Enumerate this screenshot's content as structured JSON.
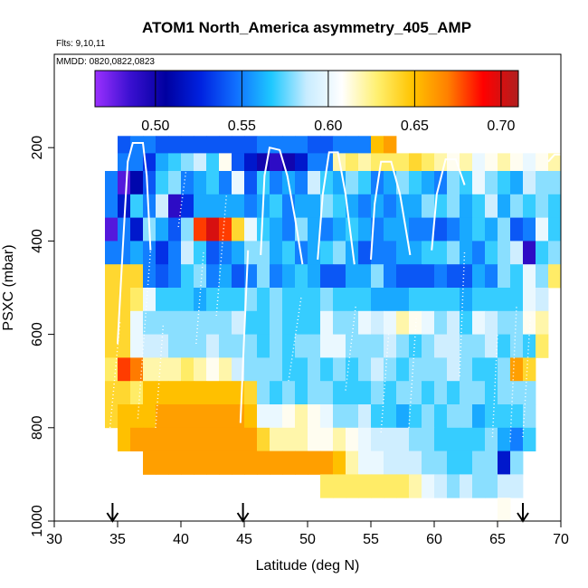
{
  "chart_data": {
    "type": "heatmap",
    "title": "ATOM1 North_America asymmetry_405_AMP",
    "annotations": [
      "Flts: 9,10,11",
      "MMDD: 0820,0822,0823"
    ],
    "xlabel": "Latitude (deg N)",
    "ylabel": "PSXC (mbar)",
    "xlim": [
      30,
      70
    ],
    "ylim": [
      1000,
      0
    ],
    "xticks": [
      30,
      35,
      40,
      45,
      50,
      55,
      60,
      65,
      70
    ],
    "yticks": [
      200,
      400,
      600,
      800,
      1000
    ],
    "colorbar": {
      "range": [
        0.465,
        0.71
      ],
      "ticks": [
        0.5,
        0.55,
        0.6,
        0.65,
        0.7
      ],
      "tick_labels": [
        "0.50",
        "0.55",
        "0.60",
        "0.65",
        "0.70"
      ],
      "colors": [
        "#9b30ff",
        "#3a10d0",
        "#0000a0",
        "#0022e0",
        "#1070ff",
        "#1ec8ff",
        "#c8ecff",
        "#ffffff",
        "#fff070",
        "#ffc400",
        "#ff8000",
        "#ff0000",
        "#b01f1f"
      ]
    },
    "arrows_lat": [
      34.6,
      44.9,
      67.0
    ],
    "grid": {
      "lat_bin": 1,
      "lat0": 34,
      "p_levels": [
        200,
        225,
        275,
        325,
        375,
        425,
        475,
        525,
        575,
        625,
        675,
        725,
        775,
        825,
        875,
        925,
        975
      ],
      "p_edges": [
        175,
        212,
        250,
        300,
        350,
        400,
        450,
        500,
        550,
        600,
        650,
        700,
        750,
        800,
        850,
        900,
        950,
        1000
      ],
      "rows": [
        {
          "p": 200,
          "start": 35,
          "values": [
            0.54,
            0.55,
            0.55,
            0.54,
            0.54,
            0.54,
            0.54,
            0.54,
            0.54,
            0.54,
            0.54,
            0.55,
            0.55,
            0.55,
            0.55,
            0.54,
            0.54,
            0.55,
            0.55,
            0.55,
            0.65,
            0.66
          ]
        },
        {
          "p": 225,
          "start": 35,
          "values": [
            0.55,
            0.55,
            0.53,
            0.56,
            0.57,
            0.58,
            0.59,
            0.57,
            0.61,
            0.54,
            0.52,
            0.5,
            0.49,
            0.5,
            0.52,
            0.55,
            0.55,
            0.62,
            0.63,
            0.62,
            0.63,
            0.63,
            0.63,
            0.64,
            0.63,
            0.62,
            0.61,
            0.62,
            0.6,
            0.61,
            0.62,
            0.61,
            0.6,
            0.61,
            0.62
          ]
        },
        {
          "p": 275,
          "start": 34,
          "values": [
            0.55,
            0.48,
            0.51,
            0.54,
            0.57,
            0.58,
            0.55,
            0.56,
            0.57,
            0.55,
            0.6,
            0.54,
            0.57,
            0.55,
            0.56,
            0.55,
            0.59,
            0.57,
            0.56,
            0.58,
            0.57,
            0.55,
            0.56,
            0.58,
            0.57,
            0.56,
            0.55,
            0.58,
            0.57,
            0.6,
            0.58,
            0.57,
            0.56,
            0.59,
            0.58,
            0.58
          ]
        },
        {
          "p": 325,
          "start": 34,
          "values": [
            0.55,
            0.52,
            0.57,
            0.55,
            0.59,
            0.49,
            0.53,
            0.56,
            0.56,
            0.56,
            0.56,
            0.55,
            0.56,
            0.57,
            0.55,
            0.56,
            0.56,
            0.58,
            0.57,
            0.56,
            0.55,
            0.56,
            0.55,
            0.56,
            0.56,
            0.58,
            0.57,
            0.58,
            0.56,
            0.57,
            0.59,
            0.56,
            0.58,
            0.57,
            0.58,
            0.57
          ]
        },
        {
          "p": 375,
          "start": 34,
          "values": [
            0.48,
            0.55,
            0.52,
            0.58,
            0.56,
            0.54,
            0.58,
            0.68,
            0.7,
            0.68,
            0.64,
            0.6,
            0.57,
            0.56,
            0.55,
            0.58,
            0.56,
            0.55,
            0.56,
            0.57,
            0.56,
            0.55,
            0.56,
            0.56,
            0.55,
            0.55,
            0.54,
            0.55,
            0.56,
            0.57,
            0.56,
            0.58,
            0.54,
            0.55,
            0.6,
            0.57
          ]
        },
        {
          "p": 425,
          "start": 34,
          "values": [
            0.55,
            0.55,
            0.56,
            0.55,
            0.53,
            0.55,
            0.59,
            0.57,
            0.54,
            0.55,
            0.56,
            0.58,
            0.58,
            0.56,
            0.57,
            0.55,
            0.56,
            0.57,
            0.58,
            0.56,
            0.54,
            0.55,
            0.55,
            0.56,
            0.56,
            0.57,
            0.57,
            0.58,
            0.56,
            0.55,
            0.57,
            0.58,
            0.59,
            0.49,
            0.57,
            0.58
          ]
        },
        {
          "p": 475,
          "start": 34,
          "values": [
            0.64,
            0.64,
            0.64,
            0.55,
            0.54,
            0.55,
            0.57,
            0.58,
            0.55,
            0.56,
            0.54,
            0.55,
            0.58,
            0.55,
            0.56,
            0.57,
            0.56,
            0.54,
            0.54,
            0.56,
            0.56,
            0.58,
            0.55,
            0.54,
            0.54,
            0.54,
            0.55,
            0.54,
            0.54,
            0.56,
            0.55,
            0.58,
            0.57,
            0.6,
            0.58,
            0.63
          ]
        },
        {
          "p": 525,
          "start": 34,
          "values": [
            0.64,
            0.64,
            0.63,
            0.6,
            0.57,
            0.57,
            0.57,
            0.56,
            0.57,
            0.57,
            0.57,
            0.58,
            0.57,
            0.58,
            0.57,
            0.57,
            0.57,
            0.58,
            0.57,
            0.57,
            0.57,
            0.56,
            0.56,
            0.56,
            0.57,
            0.57,
            0.57,
            0.57,
            0.56,
            0.57,
            0.57,
            0.57,
            0.57,
            0.6,
            0.59
          ]
        },
        {
          "p": 575,
          "start": 34,
          "values": [
            0.64,
            0.64,
            0.6,
            0.58,
            0.58,
            0.58,
            0.58,
            0.58,
            0.58,
            0.58,
            0.59,
            0.57,
            0.57,
            0.58,
            0.57,
            0.57,
            0.57,
            0.6,
            0.58,
            0.58,
            0.6,
            0.59,
            0.6,
            0.62,
            0.61,
            0.6,
            0.58,
            0.59,
            0.57,
            0.6,
            0.59,
            0.58,
            0.58,
            0.61,
            0.62
          ]
        },
        {
          "p": 625,
          "start": 34,
          "values": [
            0.64,
            0.64,
            0.6,
            0.59,
            0.59,
            0.58,
            0.58,
            0.58,
            0.59,
            0.58,
            0.58,
            0.58,
            0.57,
            0.58,
            0.57,
            0.58,
            0.58,
            0.6,
            0.6,
            0.58,
            0.58,
            0.58,
            0.59,
            0.58,
            0.57,
            0.58,
            0.59,
            0.59,
            0.58,
            0.58,
            0.59,
            0.57,
            0.58,
            0.57,
            0.63
          ]
        },
        {
          "p": 675,
          "start": 34,
          "values": [
            0.63,
            0.68,
            0.67,
            0.62,
            0.62,
            0.62,
            0.63,
            0.62,
            0.61,
            0.62,
            0.59,
            0.58,
            0.58,
            0.58,
            0.57,
            0.57,
            0.58,
            0.57,
            0.58,
            0.57,
            0.58,
            0.59,
            0.58,
            0.57,
            0.58,
            0.58,
            0.58,
            0.59,
            0.58,
            0.57,
            0.57,
            0.58,
            0.66,
            0.64
          ]
        },
        {
          "p": 725,
          "start": 34,
          "values": [
            0.64,
            0.64,
            0.63,
            0.65,
            0.65,
            0.65,
            0.65,
            0.65,
            0.65,
            0.65,
            0.65,
            0.64,
            0.58,
            0.57,
            0.58,
            0.57,
            0.58,
            0.58,
            0.57,
            0.57,
            0.57,
            0.58,
            0.57,
            0.58,
            0.58,
            0.57,
            0.58,
            0.57,
            0.58,
            0.58,
            0.57,
            0.58,
            0.58,
            0.58
          ]
        },
        {
          "p": 775,
          "start": 34,
          "values": [
            0.64,
            0.65,
            0.65,
            0.65,
            0.66,
            0.66,
            0.66,
            0.66,
            0.66,
            0.66,
            0.66,
            0.65,
            0.6,
            0.6,
            0.61,
            0.62,
            0.61,
            0.6,
            0.58,
            0.58,
            0.59,
            0.57,
            0.57,
            0.56,
            0.57,
            0.58,
            0.57,
            0.58,
            0.58,
            0.56,
            0.57,
            0.57,
            0.57,
            0.58
          ]
        },
        {
          "p": 825,
          "start": 35,
          "values": [
            0.65,
            0.66,
            0.66,
            0.66,
            0.66,
            0.66,
            0.66,
            0.66,
            0.66,
            0.66,
            0.66,
            0.64,
            0.62,
            0.62,
            0.62,
            0.61,
            0.61,
            0.62,
            0.61,
            0.6,
            0.59,
            0.59,
            0.59,
            0.58,
            0.58,
            0.57,
            0.57,
            0.57,
            0.57,
            0.58,
            0.56,
            0.55,
            0.57
          ]
        },
        {
          "p": 875,
          "start": 37,
          "values": [
            0.66,
            0.66,
            0.66,
            0.66,
            0.66,
            0.66,
            0.66,
            0.66,
            0.66,
            0.66,
            0.66,
            0.66,
            0.66,
            0.66,
            0.66,
            0.65,
            0.62,
            0.6,
            0.6,
            0.59,
            0.59,
            0.59,
            0.58,
            0.58,
            0.57,
            0.57,
            0.58,
            0.58,
            0.52,
            0.58
          ]
        },
        {
          "p": 925,
          "start": 51,
          "values": [
            0.63,
            0.63,
            0.63,
            0.63,
            0.63,
            0.63,
            0.63,
            0.62,
            0.6,
            0.59,
            0.58,
            0.59,
            0.58,
            0.58,
            0.59,
            0.59
          ]
        },
        {
          "p": 975,
          "start": 65,
          "values": [
            0.61
          ]
        }
      ]
    }
  }
}
